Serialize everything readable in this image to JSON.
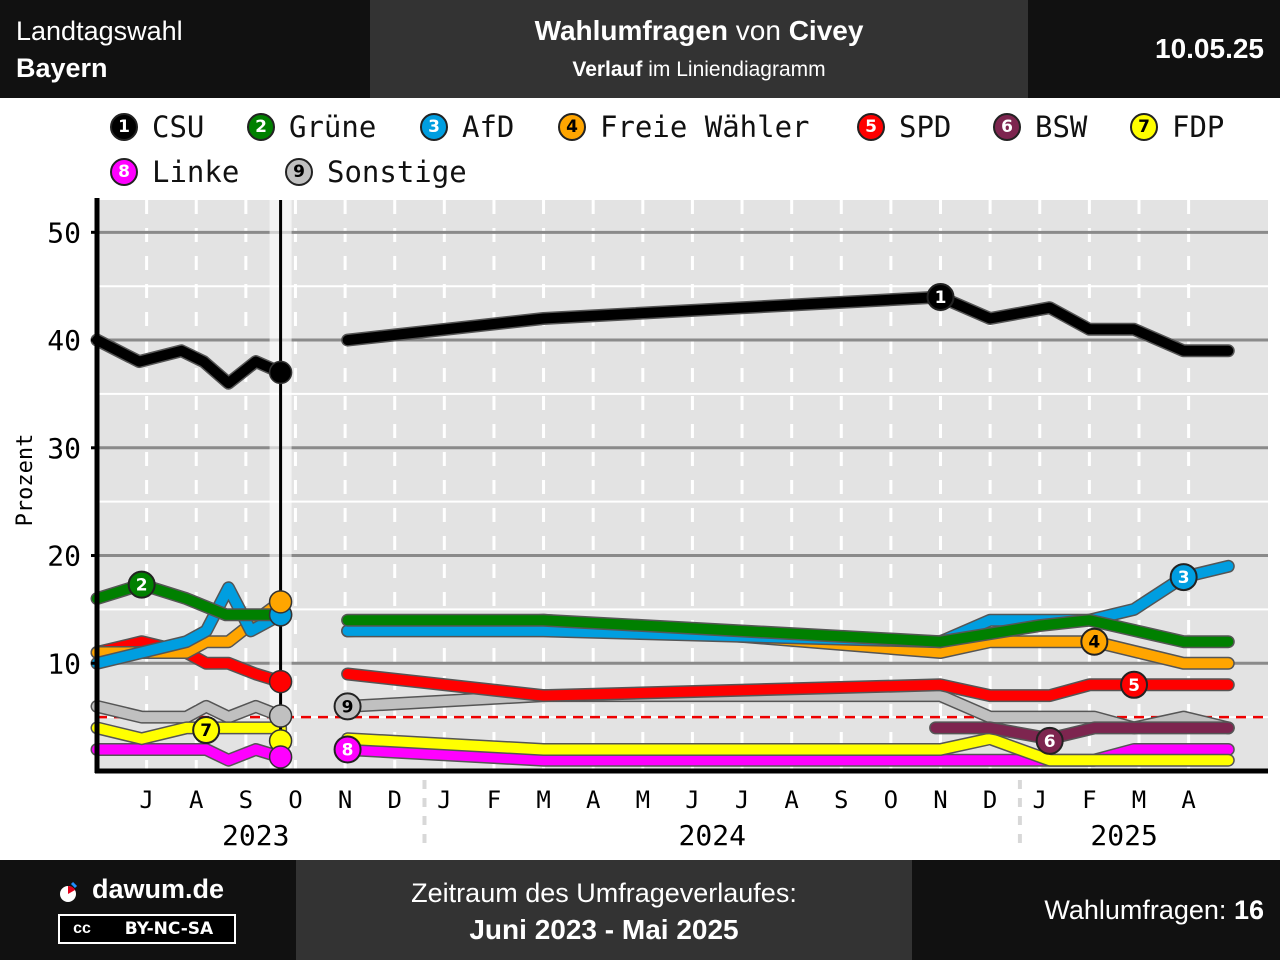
{
  "header": {
    "region_line1": "Landtagswahl",
    "region_line2": "Bayern",
    "title_bold1": "Wahlumfragen",
    "title_mid": " von ",
    "title_bold2": "Civey",
    "subtitle_bold": "Verlauf",
    "subtitle_rest": " im Liniendiagramm",
    "date": "10.05.25"
  },
  "footer": {
    "brand": "dawum.de",
    "license_cc": "cc",
    "license": "BY-NC-SA",
    "period_label": "Zeitraum des Umfrageverlaufes:",
    "period_value": "Juni 2023 - Mai 2025",
    "polls_label": "Wahlumfragen: ",
    "polls_count": "16"
  },
  "chart_data": {
    "type": "line",
    "ylabel": "Prozent",
    "ylim": [
      0,
      53
    ],
    "yticks": [
      10,
      20,
      30,
      40,
      50
    ],
    "xlim": [
      0,
      23.6
    ],
    "month_ticks": [
      {
        "x": 1,
        "label": "J"
      },
      {
        "x": 2,
        "label": "A"
      },
      {
        "x": 3,
        "label": "S"
      },
      {
        "x": 4,
        "label": "O"
      },
      {
        "x": 5,
        "label": "N"
      },
      {
        "x": 6,
        "label": "D"
      },
      {
        "x": 7,
        "label": "J"
      },
      {
        "x": 8,
        "label": "F"
      },
      {
        "x": 9,
        "label": "M"
      },
      {
        "x": 10,
        "label": "A"
      },
      {
        "x": 11,
        "label": "M"
      },
      {
        "x": 12,
        "label": "J"
      },
      {
        "x": 13,
        "label": "J"
      },
      {
        "x": 14,
        "label": "A"
      },
      {
        "x": 15,
        "label": "S"
      },
      {
        "x": 16,
        "label": "O"
      },
      {
        "x": 17,
        "label": "N"
      },
      {
        "x": 18,
        "label": "D"
      },
      {
        "x": 19,
        "label": "J"
      },
      {
        "x": 20,
        "label": "F"
      },
      {
        "x": 21,
        "label": "M"
      },
      {
        "x": 22,
        "label": "A"
      }
    ],
    "years": [
      {
        "label": "2023",
        "x": 3.2
      },
      {
        "label": "2024",
        "x": 12.4
      },
      {
        "label": "2025",
        "x": 20.7
      }
    ],
    "year_separators": [
      6.6,
      18.6
    ],
    "election_x": 3.7,
    "threshold": 5,
    "grid": true,
    "legend_placement": "top",
    "series": [
      {
        "name": "CSU",
        "num": "1",
        "color": "#000000",
        "text": "#ffffff",
        "pre": [
          [
            0,
            40
          ],
          [
            0.85,
            38
          ],
          [
            1.7,
            39
          ],
          [
            2.15,
            38
          ],
          [
            2.65,
            36
          ],
          [
            3.2,
            38
          ],
          [
            3.7,
            37
          ]
        ],
        "post": [
          [
            5.05,
            40
          ],
          [
            9,
            42
          ],
          [
            17,
            44
          ],
          [
            18,
            42
          ],
          [
            19.2,
            43
          ],
          [
            20,
            41
          ],
          [
            20.9,
            41
          ],
          [
            21.9,
            39
          ],
          [
            22.8,
            39
          ]
        ],
        "badge": [
          17,
          44
        ]
      },
      {
        "name": "Grüne",
        "num": "2",
        "color": "#008000",
        "text": "#ffffff",
        "pre": [
          [
            0,
            16
          ],
          [
            0.9,
            17.3
          ],
          [
            1.8,
            16
          ],
          [
            2.6,
            14.5
          ],
          [
            3.7,
            14.5
          ]
        ],
        "post": [
          [
            5.05,
            14
          ],
          [
            9,
            14
          ],
          [
            17,
            12
          ],
          [
            19,
            13.5
          ],
          [
            20,
            14
          ],
          [
            21.9,
            12
          ],
          [
            22.8,
            12
          ]
        ],
        "badge": [
          0.9,
          17.3
        ]
      },
      {
        "name": "AfD",
        "num": "3",
        "color": "#009EE0",
        "text": "#ffffff",
        "pre": [
          [
            0,
            10
          ],
          [
            1.8,
            12
          ],
          [
            2.2,
            13
          ],
          [
            2.65,
            17
          ],
          [
            3.1,
            13
          ],
          [
            3.7,
            14.5
          ]
        ],
        "post": [
          [
            5.05,
            13
          ],
          [
            9,
            13
          ],
          [
            17,
            12
          ],
          [
            18,
            14
          ],
          [
            20,
            14
          ],
          [
            20.9,
            15
          ],
          [
            21.9,
            18
          ],
          [
            22.8,
            19
          ]
        ],
        "badge": [
          21.9,
          18
        ]
      },
      {
        "name": "Freie Wähler",
        "num": "4",
        "color": "#FFA500",
        "text": "#000000",
        "pre": [
          [
            0,
            11
          ],
          [
            1.8,
            11
          ],
          [
            2.2,
            12
          ],
          [
            2.65,
            12
          ],
          [
            3.2,
            14
          ],
          [
            3.7,
            15.7
          ]
        ],
        "post": [
          [
            5.05,
            13
          ],
          [
            9,
            14
          ],
          [
            17,
            11
          ],
          [
            18,
            12
          ],
          [
            20.1,
            12
          ],
          [
            21.9,
            10
          ],
          [
            22.8,
            10
          ]
        ],
        "badge": [
          20.1,
          12
        ]
      },
      {
        "name": "SPD",
        "num": "5",
        "color": "#FF0000",
        "text": "#ffffff",
        "pre": [
          [
            0,
            11
          ],
          [
            0.9,
            12
          ],
          [
            1.8,
            11
          ],
          [
            2.2,
            10
          ],
          [
            2.65,
            10
          ],
          [
            3.2,
            9
          ],
          [
            3.7,
            8.3
          ]
        ],
        "post": [
          [
            5.05,
            9
          ],
          [
            9,
            7
          ],
          [
            17,
            8
          ],
          [
            18,
            7
          ],
          [
            19.2,
            7
          ],
          [
            20,
            8
          ],
          [
            20.9,
            8
          ],
          [
            22.8,
            8
          ]
        ],
        "badge": [
          20.9,
          8
        ]
      },
      {
        "name": "BSW",
        "num": "6",
        "color": "#7D254F",
        "text": "#ffffff",
        "pre": [],
        "post": [
          [
            16.9,
            4
          ],
          [
            18,
            4
          ],
          [
            19.2,
            3
          ],
          [
            20.1,
            4
          ],
          [
            22.8,
            4
          ]
        ],
        "badge": [
          19.2,
          2.8
        ]
      },
      {
        "name": "FDP",
        "num": "7",
        "color": "#FFFF00",
        "text": "#000000",
        "pre": [
          [
            0,
            4
          ],
          [
            0.9,
            3
          ],
          [
            1.8,
            4
          ],
          [
            3.7,
            4
          ],
          [
            3.7,
            2.8
          ]
        ],
        "post": [
          [
            5.05,
            3
          ],
          [
            9,
            2
          ],
          [
            17,
            2
          ],
          [
            18,
            3
          ],
          [
            19.2,
            1
          ],
          [
            22.8,
            1
          ]
        ],
        "badge": [
          2.2,
          3.8
        ]
      },
      {
        "name": "Linke",
        "num": "8",
        "color": "#FF00FF",
        "text": "#ffffff",
        "pre": [
          [
            0,
            2
          ],
          [
            2.2,
            2
          ],
          [
            2.65,
            1
          ],
          [
            3.2,
            2
          ],
          [
            3.7,
            1.3
          ]
        ],
        "post": [
          [
            5.05,
            2
          ],
          [
            9,
            1
          ],
          [
            20.1,
            1
          ],
          [
            20.9,
            2
          ],
          [
            22.8,
            2
          ]
        ],
        "badge": [
          5.05,
          2
        ]
      },
      {
        "name": "Sonstige",
        "num": "9",
        "color": "#C0C0C0",
        "text": "#000000",
        "pre": [
          [
            0,
            6
          ],
          [
            0.9,
            5
          ],
          [
            1.8,
            5
          ],
          [
            2.2,
            6
          ],
          [
            2.65,
            5
          ],
          [
            3.2,
            6
          ],
          [
            3.7,
            5.1
          ]
        ],
        "post": [
          [
            5.05,
            6
          ],
          [
            9,
            7
          ],
          [
            17,
            7
          ],
          [
            18,
            5
          ],
          [
            20.1,
            5
          ],
          [
            20.9,
            4
          ],
          [
            21.9,
            5
          ],
          [
            22.8,
            4
          ]
        ],
        "badge": [
          5.05,
          6
        ]
      }
    ]
  }
}
